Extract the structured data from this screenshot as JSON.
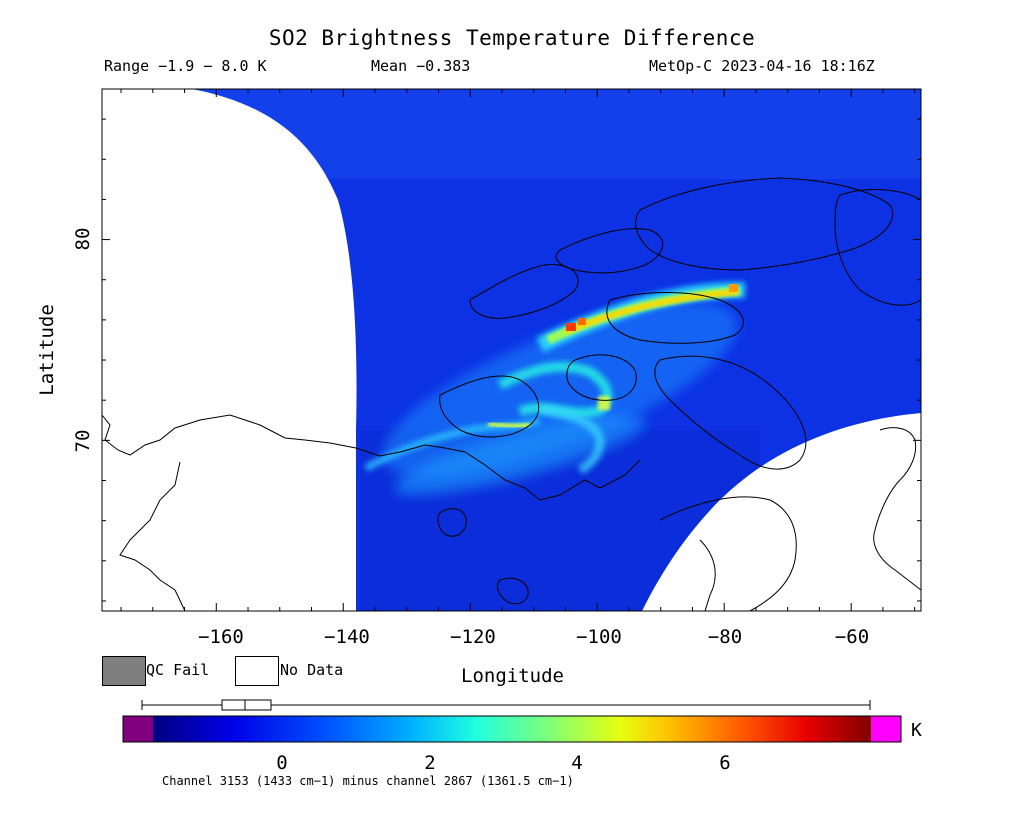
{
  "title": "SO2 Brightness Temperature Difference",
  "subtitle": {
    "range": "Range −1.9 − 8.0 K",
    "mean": "Mean −0.383",
    "satellite_time": "MetOp-C 2023-04-16 18:16Z"
  },
  "axes": {
    "xlabel": "Longitude",
    "ylabel": "Latitude",
    "x_ticks": [
      "−160",
      "−140",
      "−120",
      "−100",
      "−80",
      "−60"
    ],
    "y_ticks": [
      "80",
      "70"
    ],
    "x_range": [
      -178,
      -49
    ],
    "y_range": [
      61.5,
      87.5
    ]
  },
  "legend": {
    "qc_fail": "QC Fail",
    "no_data": "No Data",
    "qc_fail_color": "#7f7f7f",
    "no_data_color": "#ffffff"
  },
  "colorbar": {
    "unit": "K",
    "ticks": [
      "0",
      "2",
      "4",
      "6"
    ],
    "tick_values": [
      0,
      2,
      4,
      6
    ],
    "range": [
      -1.9,
      8.0
    ],
    "under_color": "#800080",
    "over_color": "#ff00ff",
    "boxplot": {
      "min": -1.9,
      "q1": -1.1,
      "median": -0.6,
      "q3": 0.1,
      "max": 8.0
    }
  },
  "footer": "Channel 3153 (1433 cm−1) minus channel 2867 (1361.5 cm−1)",
  "colors": {
    "background_field": "#0d35e6",
    "plume_high": "#ff2a00",
    "plume_mid": "#ffd200",
    "plume_low": "#2bf3e0"
  }
}
